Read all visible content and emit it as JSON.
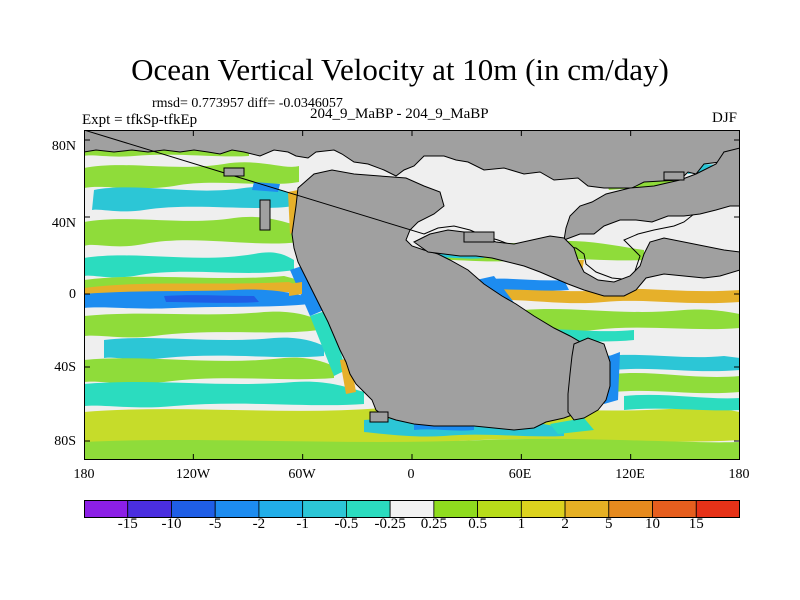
{
  "title": "Ocean Vertical Velocity at 10m (in cm/day)",
  "stats": "rmsd= 0.773957 diff= -0.0346057",
  "experiment": "Expt = tfkSp-tfkEp",
  "run_label": "204_9_MaBP - 204_9_MaBP",
  "season": "DJF",
  "y_ticks": [
    "80N",
    "40N",
    "0",
    "40S",
    "80S"
  ],
  "x_ticks": [
    "180",
    "120W",
    "60W",
    "0",
    "60E",
    "120E",
    "180"
  ],
  "colorbar": {
    "labels": [
      "-15",
      "-10",
      "-5",
      "-2",
      "-1",
      "-0.5",
      "-0.25",
      "0.25",
      "0.5",
      "1",
      "2",
      "5",
      "10",
      "15"
    ],
    "colors": [
      "#8c1fe6",
      "#4a2ee0",
      "#1f5ee6",
      "#1d8cf0",
      "#22aee8",
      "#2cc6d6",
      "#2bdcbf",
      "#f2f2f2",
      "#8fdc1e",
      "#b8dc1a",
      "#dcd21e",
      "#e6b024",
      "#e68a1e",
      "#e65e1e",
      "#e63218"
    ]
  },
  "map_colors": {
    "land": "#a0a0a0",
    "ocean_neutral": "#efefef",
    "green": "#8fdc3a",
    "yellow_green": "#c6dc2a",
    "orange": "#e6b02a",
    "cyan": "#2cc6d6",
    "teal": "#2bdcbf",
    "blue": "#1d8cf0",
    "dark_blue": "#1f5ee6"
  }
}
